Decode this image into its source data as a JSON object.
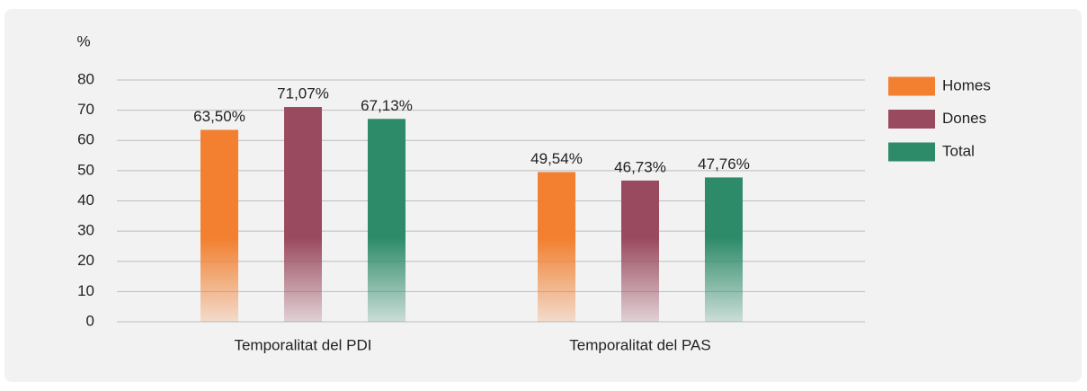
{
  "chart_data": {
    "type": "bar",
    "y_label": "%",
    "categories": [
      "Temporalitat del PDI",
      "Temporalitat del PAS"
    ],
    "series": [
      {
        "name": "Homes",
        "color": "#f28030",
        "values": [
          63.5,
          49.54
        ],
        "value_labels": [
          "63,50%",
          "49,54%"
        ]
      },
      {
        "name": "Dones",
        "color": "#9a4a5e",
        "values": [
          71.07,
          46.73
        ],
        "value_labels": [
          "71,07%",
          "46,73%"
        ]
      },
      {
        "name": "Total",
        "color": "#2e8b6a",
        "values": [
          67.13,
          47.76
        ],
        "value_labels": [
          "67,13%",
          "47,76%"
        ]
      }
    ],
    "ylim": [
      0,
      80
    ],
    "yticks": [
      0,
      10,
      20,
      30,
      40,
      50,
      60,
      70,
      80
    ],
    "grid": true,
    "legend": "right"
  }
}
